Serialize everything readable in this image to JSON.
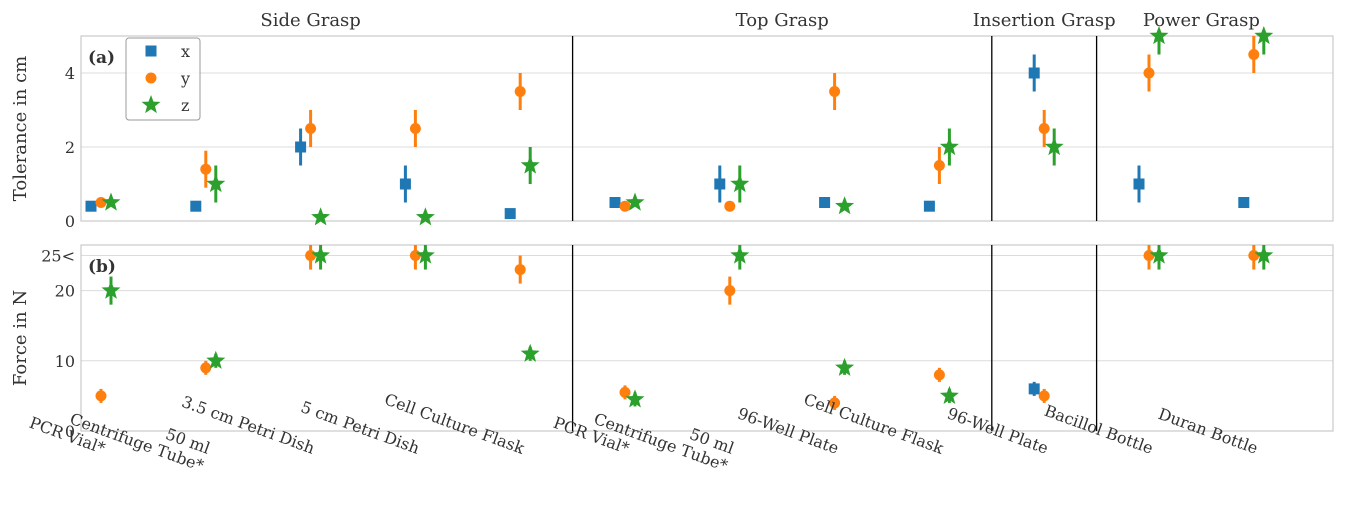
{
  "chart_data": {
    "type": "scatter",
    "group_labels": [
      "Side Grasp",
      "Top Grasp",
      "Insertion Grasp",
      "Power Grasp"
    ],
    "categories": [
      [
        "PCR Vial*"
      ],
      [
        "50 ml",
        "Centrifuge Tube*"
      ],
      [
        "3.5 cm Petri Dish"
      ],
      [
        "5 cm Petri Dish"
      ],
      [
        "Cell Culture Flask"
      ],
      [
        "PCR Vial*"
      ],
      [
        "50 ml",
        "Centrifuge Tube*"
      ],
      [
        "96-Well Plate"
      ],
      [
        "Cell Culture Flask"
      ],
      [
        "96-Well Plate"
      ],
      [
        "Bacillol Bottle"
      ],
      [
        "Duran Bottle"
      ]
    ],
    "group_boundaries_after_category": [
      4,
      8,
      9
    ],
    "legend": {
      "placement": "top-left",
      "entries": [
        {
          "name": "x",
          "marker": "square",
          "color": "#1f77b4"
        },
        {
          "name": "y",
          "marker": "circle",
          "color": "#ff7f0e"
        },
        {
          "name": "z",
          "marker": "star",
          "color": "#2ca02c"
        }
      ]
    },
    "panels": [
      {
        "label": "(a)",
        "ylabel": "Tolerance in cm",
        "ylim": [
          0,
          5
        ],
        "yticks": [
          {
            "v": 0,
            "t": "0"
          },
          {
            "v": 2,
            "t": "2"
          },
          {
            "v": 4,
            "t": "4"
          }
        ],
        "series": [
          {
            "name": "x",
            "values": [
              0.4,
              0.4,
              2.0,
              1.0,
              0.2,
              0.5,
              1.0,
              0.5,
              0.4,
              4.0,
              1.0,
              0.5
            ],
            "err": [
              0,
              0,
              0.5,
              0.5,
              0,
              0,
              0.5,
              0,
              0,
              0.5,
              0.5,
              0
            ]
          },
          {
            "name": "y",
            "values": [
              0.5,
              1.4,
              2.5,
              2.5,
              3.5,
              0.4,
              0.4,
              3.5,
              1.5,
              2.5,
              4.0,
              4.5
            ],
            "err": [
              0,
              0.5,
              0.5,
              0.5,
              0.5,
              0,
              0,
              0.5,
              0.5,
              0.5,
              0.5,
              0.5
            ]
          },
          {
            "name": "z",
            "values": [
              0.5,
              1.0,
              0.1,
              0.1,
              1.5,
              0.5,
              1.0,
              0.4,
              2.0,
              2.0,
              5.0,
              5.0
            ],
            "err": [
              0,
              0.5,
              0,
              0,
              0.5,
              0,
              0.5,
              0,
              0.5,
              0.5,
              0.5,
              0.5
            ]
          }
        ]
      },
      {
        "label": "(b)",
        "ylabel": "Force in N",
        "ylim": [
          0,
          26.5
        ],
        "yticks": [
          {
            "v": 0,
            "t": "0"
          },
          {
            "v": 10,
            "t": "10"
          },
          {
            "v": 20,
            "t": "20"
          },
          {
            "v": 25,
            "t": "25<"
          }
        ],
        "series": [
          {
            "name": "x",
            "values": [
              null,
              null,
              null,
              null,
              null,
              null,
              null,
              null,
              null,
              6.0,
              null,
              null
            ],
            "err": [
              0,
              0,
              0,
              0,
              0,
              0,
              0,
              0,
              0,
              1.0,
              0,
              0
            ]
          },
          {
            "name": "y",
            "values": [
              5.0,
              9.0,
              25.0,
              25.0,
              23.0,
              5.5,
              20.0,
              4.0,
              8.0,
              5.0,
              25.0,
              25.0
            ],
            "err": [
              1.0,
              1.0,
              2.0,
              2.0,
              2.0,
              1.0,
              2.0,
              1.0,
              1.0,
              1.0,
              2.0,
              2.0
            ]
          },
          {
            "name": "z",
            "values": [
              20.0,
              10.0,
              25.0,
              25.0,
              11.0,
              4.5,
              25.0,
              9.0,
              5.0,
              null,
              25.0,
              25.0
            ],
            "err": [
              2.0,
              1.0,
              2.0,
              2.0,
              1.0,
              1.0,
              2.0,
              1.0,
              1.0,
              0,
              2.0,
              2.0
            ]
          }
        ]
      }
    ]
  }
}
